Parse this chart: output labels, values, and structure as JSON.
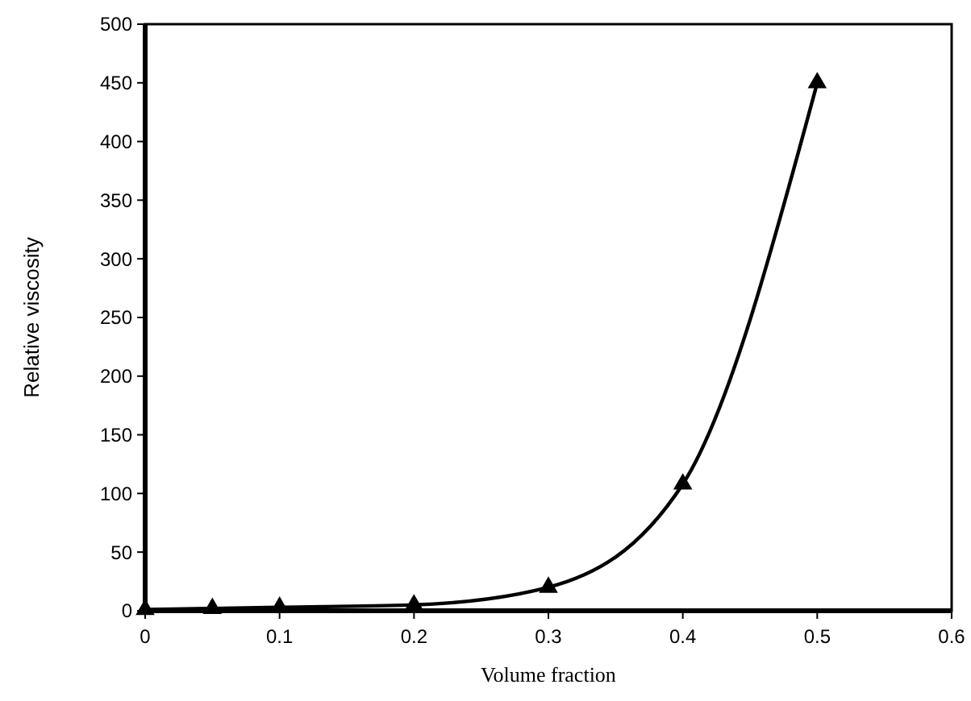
{
  "chart_data": {
    "type": "line",
    "xlabel": "Volume fraction",
    "ylabel": "Relative viscosity",
    "x": [
      0,
      0.05,
      0.1,
      0.2,
      0.3,
      0.4,
      0.5
    ],
    "series": [
      {
        "color": "#000000",
        "values": [
          1,
          2,
          3,
          5,
          20,
          108,
          450
        ]
      }
    ],
    "xlim": [
      0,
      0.6
    ],
    "xticks": [
      0,
      0.1,
      0.2,
      0.3,
      0.4,
      0.5,
      0.6
    ],
    "ylim": [
      0,
      500
    ],
    "yticks": [
      0,
      50,
      100,
      150,
      200,
      250,
      300,
      350,
      400,
      450,
      500
    ],
    "marker": "triangle",
    "line_style": "solid",
    "grid": false
  }
}
